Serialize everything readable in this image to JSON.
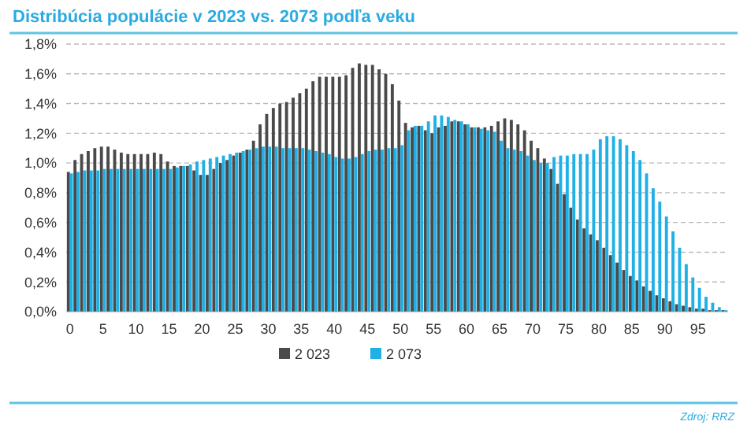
{
  "chart_data": {
    "type": "bar",
    "title": "Distribúcia populácie v 2023 vs. 2073 podľa veku",
    "categories": [
      "0",
      null,
      null,
      null,
      null,
      "5",
      null,
      null,
      null,
      null,
      "10",
      null,
      null,
      null,
      null,
      "15",
      null,
      null,
      null,
      null,
      "20",
      null,
      null,
      null,
      null,
      "25",
      null,
      null,
      null,
      null,
      "30",
      null,
      null,
      null,
      null,
      "35",
      null,
      null,
      null,
      null,
      "40",
      null,
      null,
      null,
      null,
      "45",
      null,
      null,
      null,
      null,
      "50",
      null,
      null,
      null,
      null,
      "55",
      null,
      null,
      null,
      null,
      "60",
      null,
      null,
      null,
      null,
      "65",
      null,
      null,
      null,
      null,
      "70",
      null,
      null,
      null,
      null,
      "75",
      null,
      null,
      null,
      null,
      "80",
      null,
      null,
      null,
      null,
      "85",
      null,
      null,
      null,
      null,
      "90",
      null,
      null,
      null,
      null,
      "95",
      null,
      null,
      null,
      null
    ],
    "series": [
      {
        "name": "2 023",
        "color": "#4a4a4a",
        "values": [
          0.94,
          1.02,
          1.06,
          1.08,
          1.1,
          1.11,
          1.11,
          1.09,
          1.07,
          1.06,
          1.06,
          1.06,
          1.06,
          1.07,
          1.06,
          1.01,
          0.98,
          0.98,
          0.98,
          0.95,
          0.92,
          0.92,
          0.96,
          1.0,
          1.02,
          1.05,
          1.07,
          1.09,
          1.15,
          1.26,
          1.33,
          1.37,
          1.4,
          1.41,
          1.44,
          1.47,
          1.5,
          1.55,
          1.58,
          1.58,
          1.58,
          1.58,
          1.59,
          1.64,
          1.67,
          1.66,
          1.66,
          1.63,
          1.6,
          1.53,
          1.42,
          1.27,
          1.24,
          1.25,
          1.22,
          1.2,
          1.24,
          1.25,
          1.28,
          1.28,
          1.26,
          1.24,
          1.24,
          1.24,
          1.25,
          1.28,
          1.3,
          1.29,
          1.26,
          1.22,
          1.15,
          1.1,
          1.03,
          0.96,
          0.86,
          0.79,
          0.7,
          0.62,
          0.56,
          0.52,
          0.48,
          0.43,
          0.38,
          0.33,
          0.28,
          0.24,
          0.21,
          0.17,
          0.14,
          0.11,
          0.09,
          0.07,
          0.05,
          0.04,
          0.03,
          0.02,
          0.02,
          0.01,
          0.01,
          0.01
        ]
      },
      {
        "name": "2 073",
        "color": "#1fb0e6",
        "values": [
          0.93,
          0.94,
          0.95,
          0.95,
          0.95,
          0.96,
          0.96,
          0.96,
          0.96,
          0.96,
          0.96,
          0.96,
          0.96,
          0.96,
          0.96,
          0.96,
          0.97,
          0.98,
          0.99,
          1.01,
          1.02,
          1.03,
          1.04,
          1.05,
          1.06,
          1.07,
          1.08,
          1.09,
          1.1,
          1.11,
          1.11,
          1.11,
          1.1,
          1.1,
          1.1,
          1.1,
          1.09,
          1.08,
          1.07,
          1.06,
          1.04,
          1.03,
          1.03,
          1.04,
          1.06,
          1.08,
          1.09,
          1.09,
          1.1,
          1.1,
          1.12,
          1.22,
          1.25,
          1.25,
          1.28,
          1.32,
          1.32,
          1.31,
          1.29,
          1.28,
          1.26,
          1.24,
          1.23,
          1.22,
          1.21,
          1.15,
          1.1,
          1.09,
          1.08,
          1.05,
          1.02,
          1.0,
          1.0,
          1.04,
          1.05,
          1.05,
          1.06,
          1.06,
          1.06,
          1.09,
          1.16,
          1.18,
          1.18,
          1.16,
          1.12,
          1.08,
          1.02,
          0.93,
          0.83,
          0.74,
          0.64,
          0.54,
          0.43,
          0.32,
          0.23,
          0.16,
          0.1,
          0.06,
          0.03,
          0.01
        ]
      }
    ],
    "ylim": [
      0,
      1.8
    ],
    "yticks": [
      {
        "value": 0,
        "label": "0,0%"
      },
      {
        "value": 0.2,
        "label": "0,2%"
      },
      {
        "value": 0.4,
        "label": "0,4%"
      },
      {
        "value": 0.6,
        "label": "0,6%"
      },
      {
        "value": 0.8,
        "label": "0,8%"
      },
      {
        "value": 1.0,
        "label": "1,0%"
      },
      {
        "value": 1.2,
        "label": "1,2%"
      },
      {
        "value": 1.4,
        "label": "1,4%"
      },
      {
        "value": 1.6,
        "label": "1,6%"
      },
      {
        "value": 1.8,
        "label": "1,8%"
      }
    ],
    "grid": "y",
    "legend": "bottom",
    "annotations": [
      "Zdroj: RRZ"
    ]
  }
}
